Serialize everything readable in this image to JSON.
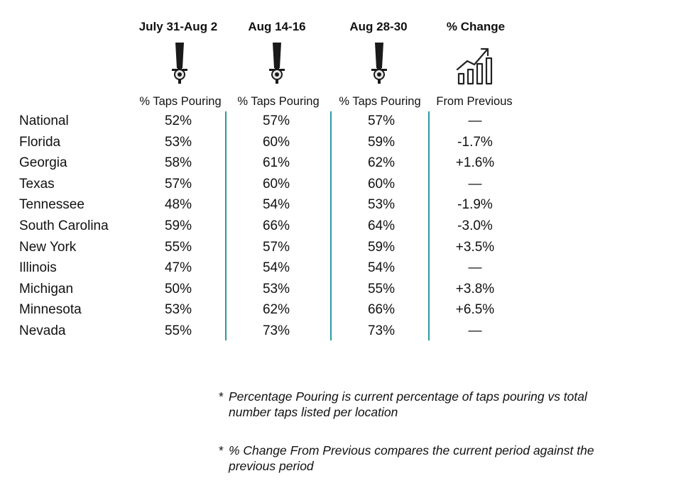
{
  "columns": [
    {
      "header": "July 31-Aug 2",
      "subheader": "% Taps Pouring",
      "icon": "beer-tap-icon"
    },
    {
      "header": "Aug 14-16",
      "subheader": "% Taps Pouring",
      "icon": "beer-tap-icon"
    },
    {
      "header": "Aug 28-30",
      "subheader": "% Taps Pouring",
      "icon": "beer-tap-icon"
    },
    {
      "header": "% Change",
      "subheader": "From Previous",
      "icon": "growth-chart-icon"
    }
  ],
  "chart_data": {
    "type": "table",
    "columns": [
      "July 31-Aug 2",
      "Aug 14-16",
      "Aug 28-30",
      "% Change"
    ],
    "rows": [
      {
        "label": "National",
        "values": [
          "52%",
          "57%",
          "57%",
          "—"
        ]
      },
      {
        "label": "Florida",
        "values": [
          "53%",
          "60%",
          "59%",
          "-1.7%"
        ]
      },
      {
        "label": "Georgia",
        "values": [
          "58%",
          "61%",
          "62%",
          "+1.6%"
        ]
      },
      {
        "label": "Texas",
        "values": [
          "57%",
          "60%",
          "60%",
          "—"
        ]
      },
      {
        "label": "Tennessee",
        "values": [
          "48%",
          "54%",
          "53%",
          "-1.9%"
        ]
      },
      {
        "label": "South Carolina",
        "values": [
          "59%",
          "66%",
          "64%",
          "-3.0%"
        ]
      },
      {
        "label": "New York",
        "values": [
          "55%",
          "57%",
          "59%",
          "+3.5%"
        ]
      },
      {
        "label": "Illinois",
        "values": [
          "47%",
          "54%",
          "54%",
          "—"
        ]
      },
      {
        "label": "Michigan",
        "values": [
          "50%",
          "53%",
          "55%",
          "+3.8%"
        ]
      },
      {
        "label": "Minnesota",
        "values": [
          "53%",
          "62%",
          "66%",
          "+6.5%"
        ]
      },
      {
        "label": "Nevada",
        "values": [
          "55%",
          "73%",
          "73%",
          "—"
        ]
      }
    ]
  },
  "notes": [
    {
      "marker": "*",
      "text": "Percentage Pouring is current percentage of taps pouring vs total number taps listed per location"
    },
    {
      "marker": "*",
      "text": "% Change From Previous compares the current period against the previous period"
    }
  ],
  "colors": {
    "divider": "#2a9aa0",
    "text": "#111111",
    "icon": "#222222"
  }
}
